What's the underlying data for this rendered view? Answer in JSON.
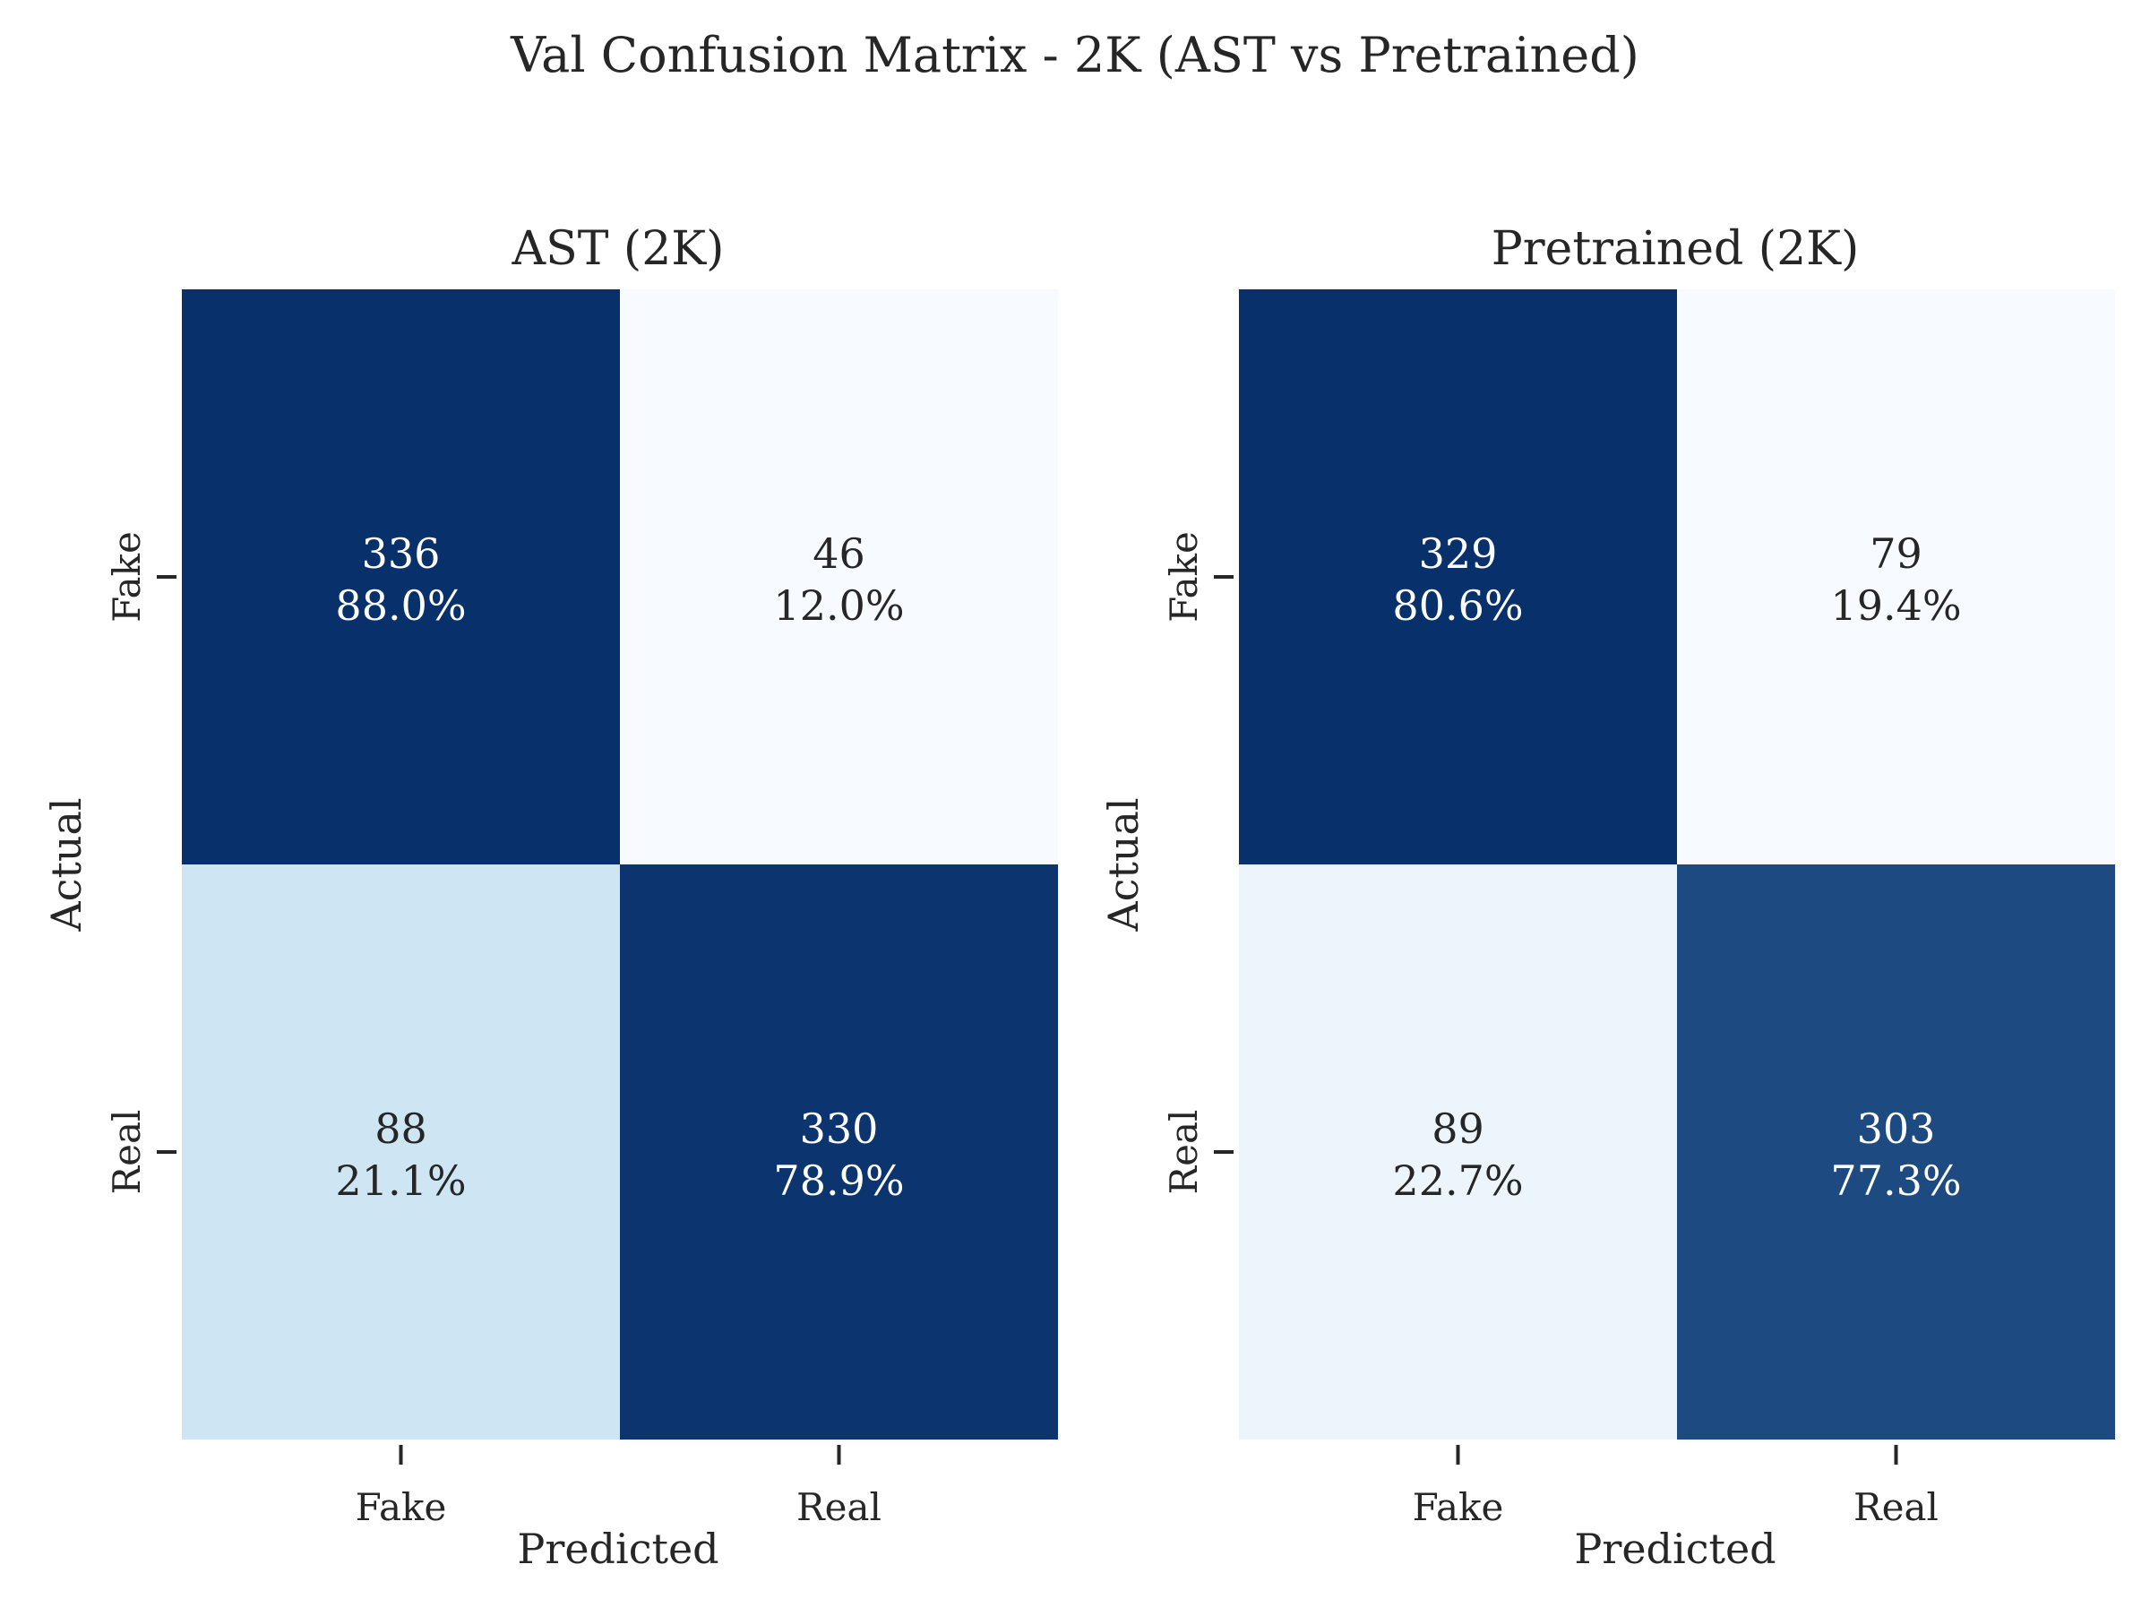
{
  "figure": {
    "title": "Val Confusion Matrix - 2K (AST vs Pretrained)"
  },
  "colors": {
    "scale_low": "#f7fbff",
    "scale_mid": "#6baed6",
    "scale_high": "#08306b",
    "text_dark": "#262626",
    "text_light": "#ffffff"
  },
  "chart_data": [
    {
      "type": "heatmap",
      "title": "AST (2K)",
      "xlabel": "Predicted",
      "ylabel": "Actual",
      "x_categories": [
        "Fake",
        "Real"
      ],
      "y_categories": [
        "Fake",
        "Real"
      ],
      "counts": [
        [
          336,
          46
        ],
        [
          88,
          330
        ]
      ],
      "percent_labels": [
        [
          "88.0%",
          "12.0%"
        ],
        [
          "21.1%",
          "78.9%"
        ]
      ],
      "colorbar": false,
      "grid": false,
      "legend": "none"
    },
    {
      "type": "heatmap",
      "title": "Pretrained (2K)",
      "xlabel": "Predicted",
      "ylabel": "Actual",
      "x_categories": [
        "Fake",
        "Real"
      ],
      "y_categories": [
        "Fake",
        "Real"
      ],
      "counts": [
        [
          329,
          79
        ],
        [
          89,
          303
        ]
      ],
      "percent_labels": [
        [
          "80.6%",
          "19.4%"
        ],
        [
          "22.7%",
          "77.3%"
        ]
      ],
      "colorbar": false,
      "grid": false,
      "legend": "none"
    }
  ]
}
